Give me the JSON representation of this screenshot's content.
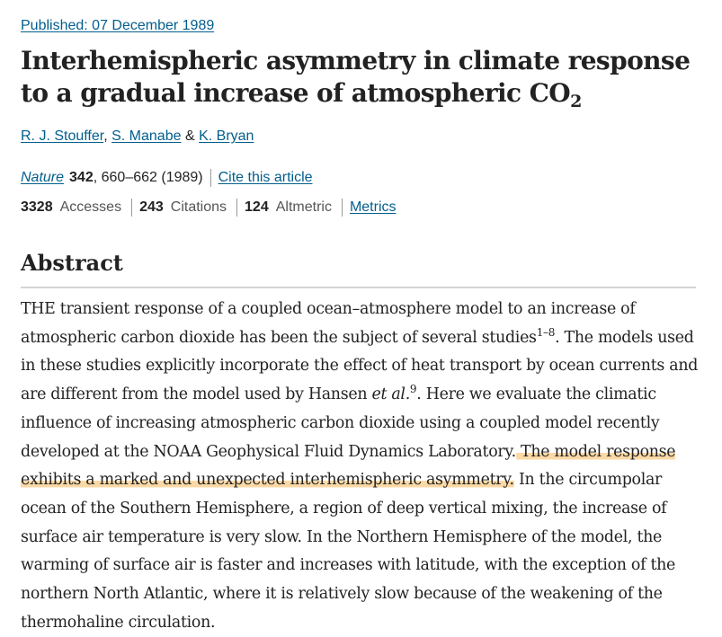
{
  "published": "Published: 07 December 1989",
  "title": {
    "main": "Interhemispheric asymmetry in climate response to a gradual increase of atmospheric CO",
    "subscript": "2"
  },
  "authors": {
    "a1": "R. J. Stouffer",
    "comma": ",",
    "a2": "S. Manabe",
    "amp": "&",
    "a3": "K. Bryan"
  },
  "citation": {
    "journal": "Nature",
    "volume": "342",
    "pages": ", 660–662 (1989)",
    "cite_link": "Cite this article"
  },
  "metrics": {
    "accesses_count": "3328",
    "accesses_label": "Accesses",
    "citations_count": "243",
    "citations_label": "Citations",
    "altmetric_count": "124",
    "altmetric_label": "Altmetric",
    "metrics_link": "Metrics"
  },
  "abstract": {
    "heading": "Abstract",
    "p1": "THE transient response of a coupled ocean–atmosphere model to an increase of atmospheric carbon dioxide has been the subject of several studies",
    "ref1": "1–8",
    "p2": ". The models used in these studies explicitly incorporate the effect of heat transport by ocean currents and are different from the model used by Hansen ",
    "etal": "et al.",
    "ref2": "9",
    "p3": ". Here we evaluate the climatic influence of increasing atmospheric carbon dioxide using a coupled model recently developed at the NOAA Geophysical Fluid Dynamics Laboratory.",
    "highlight": " The model response exhibits a marked and unexpected interhemispheric asymmetry.",
    "p4": " In the circumpolar ocean of the Southern Hemisphere, a region of deep vertical mixing, the increase of surface air temperature is very slow. In the Northern Hemisphere of the model, the warming of surface air is faster and increases with latitude, with the exception of the northern North Atlantic, where it is relatively slow because of the weakening of the thermohaline circulation.",
    "highlight_color": "#fbd9a6"
  },
  "colors": {
    "link": "#025e8d",
    "text": "#222222"
  }
}
